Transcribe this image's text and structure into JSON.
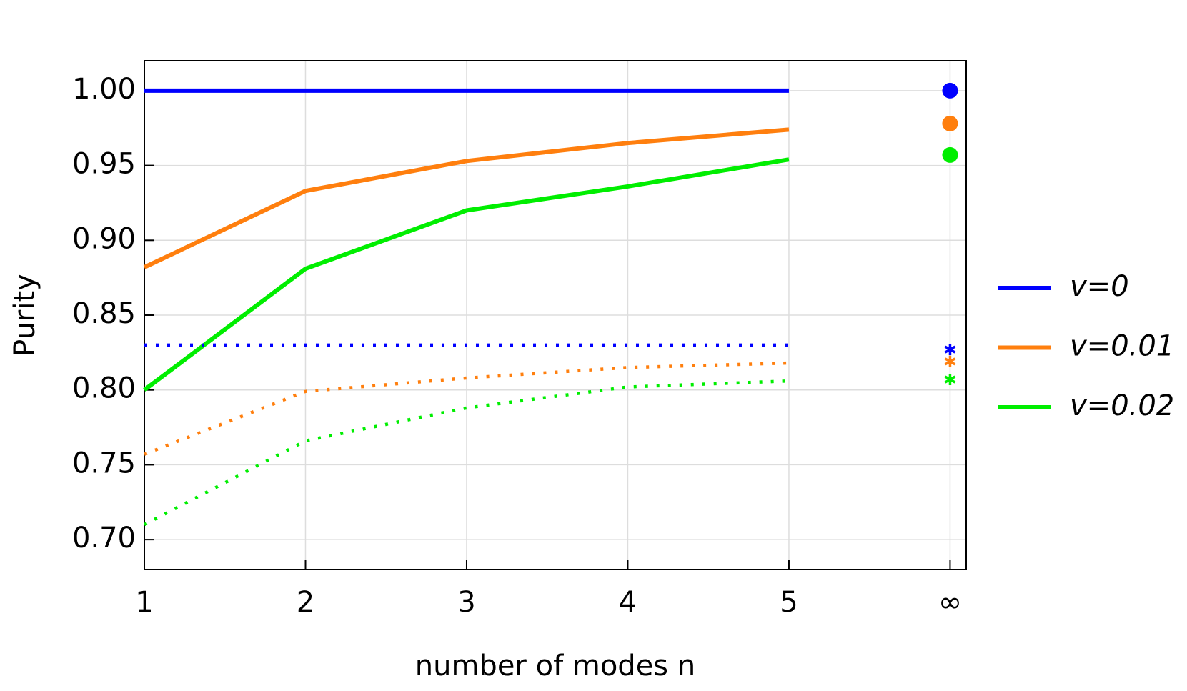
{
  "chart_data": {
    "type": "line",
    "x": [
      1,
      2,
      3,
      4,
      5
    ],
    "xlabel": "number of modes n",
    "ylabel": "Purity",
    "xlim": [
      1,
      6.1
    ],
    "ylim": [
      0.68,
      1.02
    ],
    "xticks": [
      1,
      2,
      3,
      4,
      5,
      {
        "value": 6,
        "label": "∞"
      }
    ],
    "yticks": [
      {
        "value": 0.7,
        "label": "0.70"
      },
      {
        "value": 0.75,
        "label": "0.75"
      },
      {
        "value": 0.8,
        "label": "0.80"
      },
      {
        "value": 0.85,
        "label": "0.85"
      },
      {
        "value": 0.9,
        "label": "0.90"
      },
      {
        "value": 0.95,
        "label": "0.95"
      },
      {
        "value": 1.0,
        "label": "1.00"
      }
    ],
    "grid": true,
    "legend": "right",
    "series": [
      {
        "name": "v=0",
        "color": "#0000ff",
        "style": "solid",
        "values": [
          1.0,
          1.0,
          1.0,
          1.0,
          1.0
        ],
        "limit": 1.0,
        "marker": "circle"
      },
      {
        "name": "v=0.01",
        "color": "#ff7f0e",
        "style": "solid",
        "values": [
          0.882,
          0.933,
          0.953,
          0.965,
          0.974
        ],
        "limit": 0.978,
        "marker": "circle"
      },
      {
        "name": "v=0.02",
        "color": "#00ee00",
        "style": "solid",
        "values": [
          0.8,
          0.881,
          0.92,
          0.936,
          0.954
        ],
        "limit": 0.957,
        "marker": "circle"
      },
      {
        "color": "#0000ff",
        "style": "dotted",
        "values": [
          0.83,
          0.83,
          0.83,
          0.83,
          0.83
        ],
        "limit": 0.827,
        "marker": "star"
      },
      {
        "color": "#ff7f0e",
        "style": "dotted",
        "values": [
          0.757,
          0.799,
          0.808,
          0.815,
          0.818
        ],
        "limit": 0.819,
        "marker": "star"
      },
      {
        "color": "#00ee00",
        "style": "dotted",
        "values": [
          0.71,
          0.766,
          0.788,
          0.802,
          0.806
        ],
        "limit": 0.807,
        "marker": "star"
      }
    ]
  }
}
